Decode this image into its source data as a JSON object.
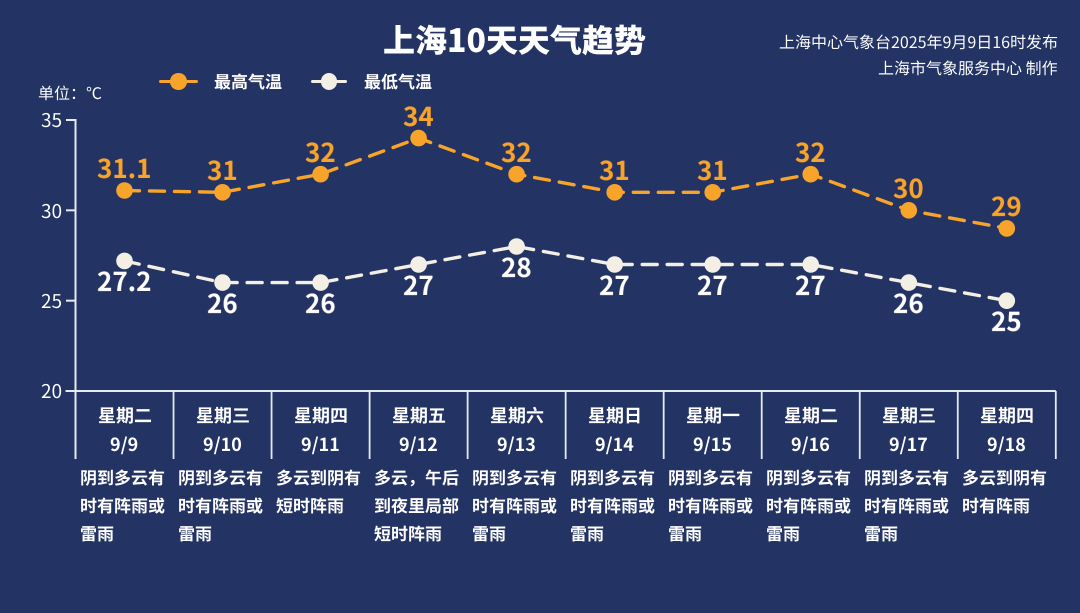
{
  "title": "上海10天天气趋势",
  "credits": {
    "line1": "上海中心气象台2025年9月9日16时发布",
    "line2": "上海市气象服务中心 制作"
  },
  "unit_label": "单位：℃",
  "legend": [
    {
      "label": "最高气温",
      "color": "#f8a42a"
    },
    {
      "label": "最低气温",
      "color": "#f3efe4"
    }
  ],
  "chart_data": {
    "type": "line",
    "title": "上海10天天气趋势",
    "line_style": "dashed",
    "grid": false,
    "legend_position": "top-left",
    "ylabel": "单位：℃",
    "ylim": [
      20,
      35
    ],
    "yticks": [
      35,
      30,
      25,
      20
    ],
    "categories": [
      {
        "weekday": "星期二",
        "date": "9/9"
      },
      {
        "weekday": "星期三",
        "date": "9/10"
      },
      {
        "weekday": "星期四",
        "date": "9/11"
      },
      {
        "weekday": "星期五",
        "date": "9/12"
      },
      {
        "weekday": "星期六",
        "date": "9/13"
      },
      {
        "weekday": "星期日",
        "date": "9/14"
      },
      {
        "weekday": "星期一",
        "date": "9/15"
      },
      {
        "weekday": "星期二",
        "date": "9/16"
      },
      {
        "weekday": "星期三",
        "date": "9/17"
      },
      {
        "weekday": "星期四",
        "date": "9/18"
      }
    ],
    "series": [
      {
        "name": "最高气温",
        "color": "#f8a42a",
        "values": [
          31.1,
          31,
          32,
          34,
          32,
          31,
          31,
          32,
          30,
          29
        ]
      },
      {
        "name": "最低气温",
        "color": "#f3efe4",
        "values": [
          27.2,
          26,
          26,
          27,
          28,
          27,
          27,
          27,
          26,
          25
        ]
      }
    ]
  },
  "weather_descriptions": [
    "阴到多云有时有阵雨或雷雨",
    "阴到多云有时有阵雨或雷雨",
    "多云到阴有短时阵雨",
    "多云，午后到夜里局部短时阵雨",
    "阴到多云有时有阵雨或雷雨",
    "阴到多云有时有阵雨或雷雨",
    "阴到多云有时有阵雨或雷雨",
    "阴到多云有时有阵雨或雷雨",
    "阴到多云有时有阵雨或雷雨",
    "多云到阴有时有阵雨"
  ],
  "colors": {
    "background": "#233363",
    "max_series": "#f8a42a",
    "min_series": "#f3efe4",
    "axis": "#e6e9f2",
    "text": "#ffffff"
  }
}
